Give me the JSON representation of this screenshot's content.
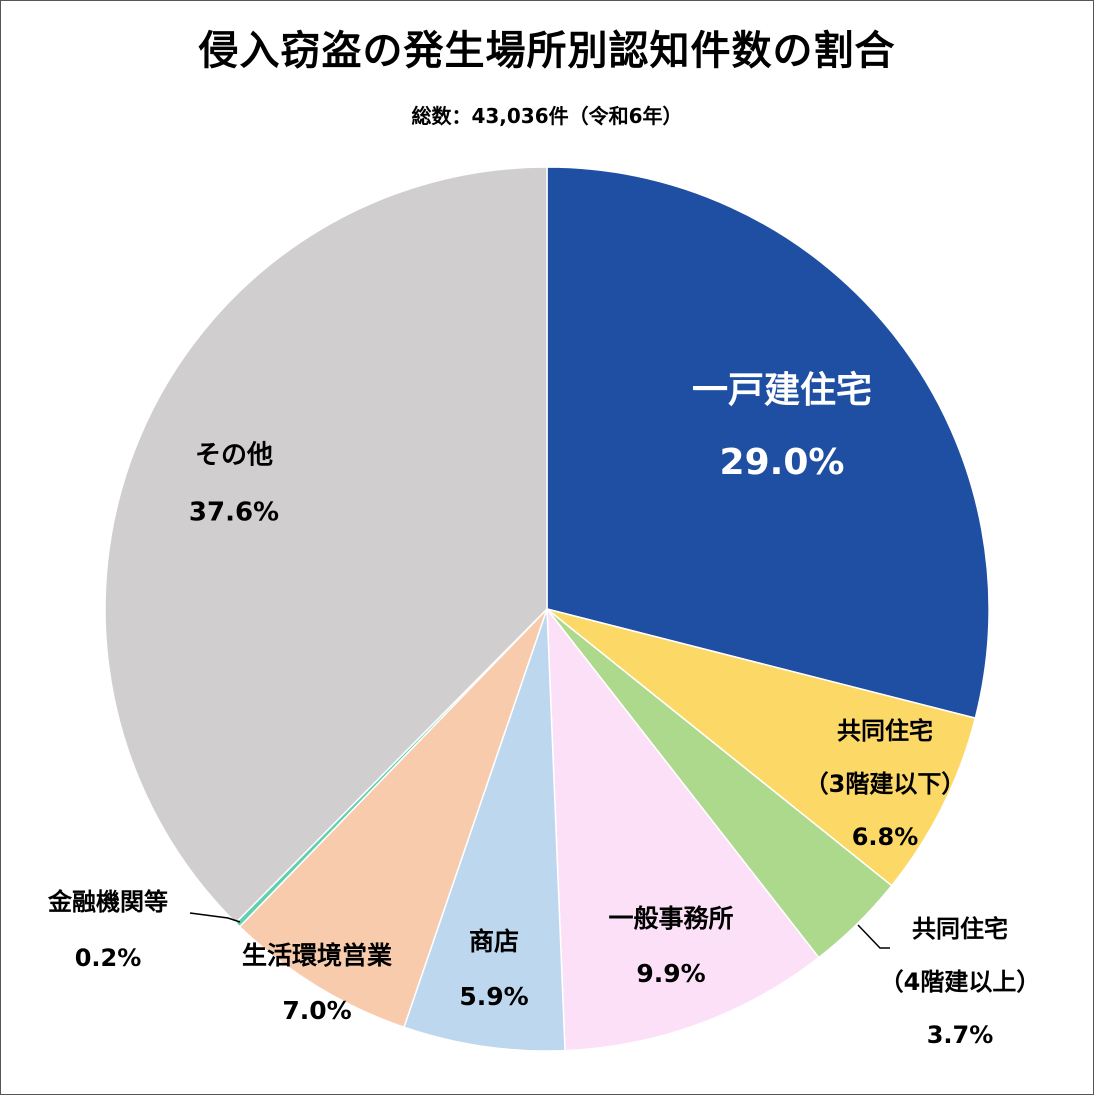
{
  "chart_data": {
    "type": "pie",
    "title": "侵入窃盗の発生場所別認知件数の割合",
    "subtitle": "総数：43,036件（令和6年）",
    "start_angle_deg": 0,
    "direction": "clockwise",
    "slices": [
      {
        "label": "一戸建住宅",
        "label_lines": [
          "一戸建住宅"
        ],
        "value": 29.0,
        "value_label": "29.0%",
        "color": "#1f4fa3",
        "text_color": "#ffffff"
      },
      {
        "label": "共同住宅（3階建以下）",
        "label_lines": [
          "共同住宅",
          "（3階建以下）"
        ],
        "value": 6.8,
        "value_label": "6.8%",
        "color": "#fcd966",
        "text_color": "#000000"
      },
      {
        "label": "共同住宅（4階建以上）",
        "label_lines": [
          "共同住宅",
          "（4階建以上）"
        ],
        "value": 3.7,
        "value_label": "3.7%",
        "color": "#acd98c",
        "text_color": "#000000"
      },
      {
        "label": "一般事務所",
        "label_lines": [
          "一般事務所"
        ],
        "value": 9.9,
        "value_label": "9.9%",
        "color": "#fce0f7",
        "text_color": "#000000"
      },
      {
        "label": "商店",
        "label_lines": [
          "商店"
        ],
        "value": 5.9,
        "value_label": "5.9%",
        "color": "#bdd7ee",
        "text_color": "#000000"
      },
      {
        "label": "生活環境営業",
        "label_lines": [
          "生活環境営業"
        ],
        "value": 7.0,
        "value_label": "7.0%",
        "color": "#f8cbad",
        "text_color": "#000000"
      },
      {
        "label": "金融機関等",
        "label_lines": [
          "金融機関等"
        ],
        "value": 0.2,
        "value_label": "0.2%",
        "color": "#5fcfb0",
        "text_color": "#000000"
      },
      {
        "label": "その他",
        "label_lines": [
          "その他"
        ],
        "value": 37.6,
        "value_label": "37.6%",
        "color": "#d0cece",
        "text_color": "#000000"
      }
    ]
  }
}
